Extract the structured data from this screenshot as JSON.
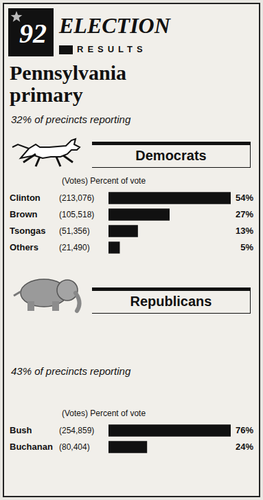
{
  "header": {
    "logo": "92",
    "title": "ELECTION",
    "subtitle": "RESULTS",
    "headline": "Pennsylvania primary"
  },
  "chart_data": [
    {
      "type": "bar",
      "orientation": "horizontal",
      "title": "Democrats",
      "subtitle": "32% of precincts reporting",
      "annotation": "(Votes) Percent of vote",
      "categories": [
        "Clinton",
        "Brown",
        "Tsongas",
        "Others"
      ],
      "vote_labels": [
        "(213,076)",
        "(105,518)",
        "(51,356)",
        "(21,490)"
      ],
      "values": [
        54,
        27,
        13,
        5
      ],
      "value_labels": [
        "54%",
        "27%",
        "13%",
        "5%"
      ],
      "xlim": [
        0,
        54
      ],
      "color": "#111111",
      "data_labels": true,
      "grid": false,
      "tick_labels": false
    },
    {
      "type": "bar",
      "orientation": "horizontal",
      "title": "Republicans",
      "subtitle": "43% of precincts reporting",
      "annotation": "(Votes) Percent of vote",
      "categories": [
        "Bush",
        "Buchanan"
      ],
      "vote_labels": [
        "(254,859)",
        "(80,404)"
      ],
      "values": [
        76,
        24
      ],
      "value_labels": [
        "76%",
        "24%"
      ],
      "xlim": [
        0,
        76
      ],
      "color": "#111111",
      "data_labels": true,
      "grid": false,
      "tick_labels": false
    }
  ]
}
